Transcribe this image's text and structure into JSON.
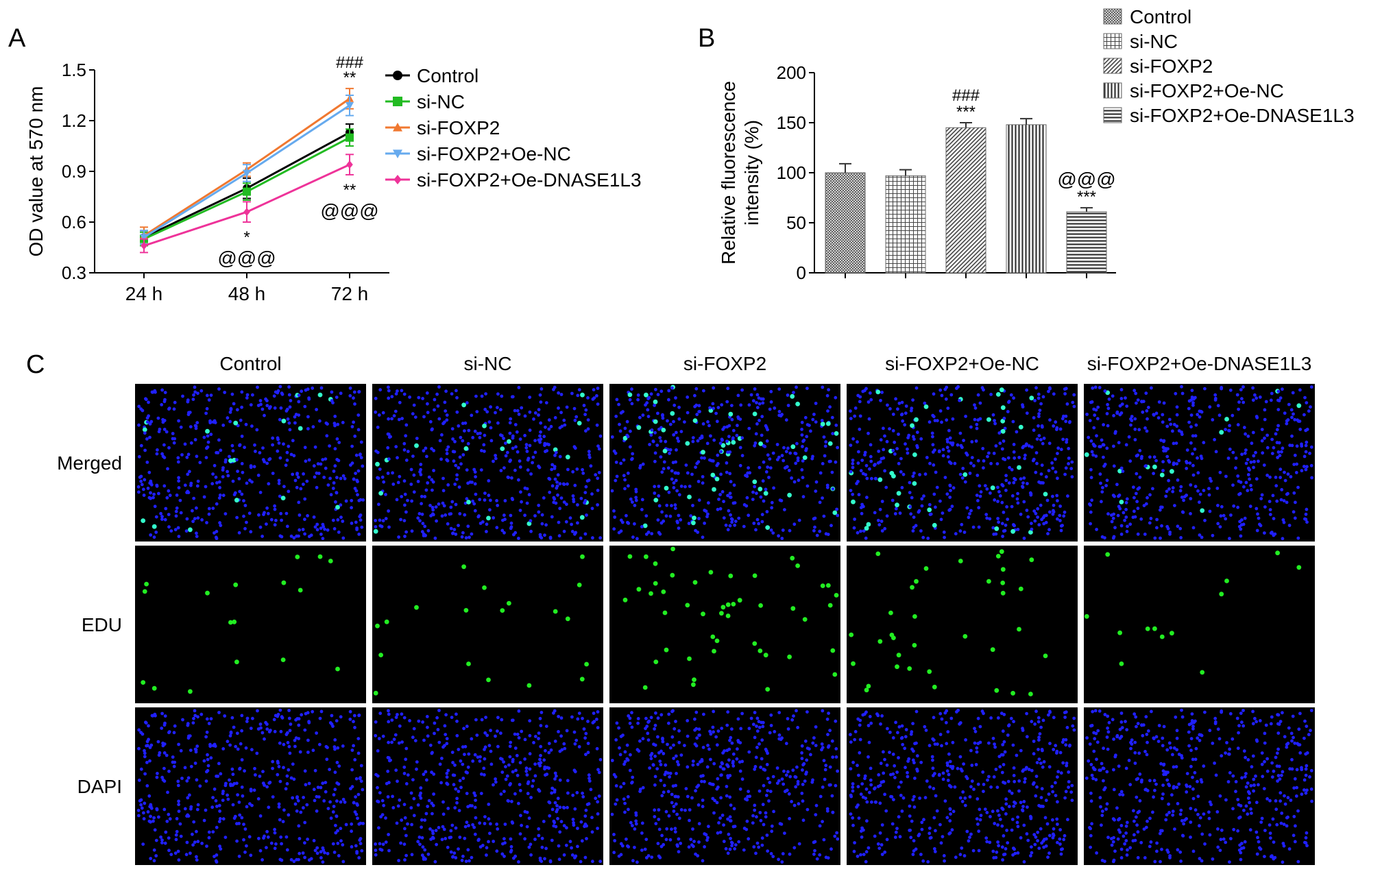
{
  "panels": {
    "a": {
      "letter": "A"
    },
    "b": {
      "letter": "B"
    },
    "c": {
      "letter": "C",
      "columns": [
        "Control",
        "si-NC",
        "si-FOXP2",
        "si-FOXP2+Oe-NC",
        "si-FOXP2+Oe-DNASE1L3"
      ],
      "rows": [
        "Merged",
        "EDU",
        "DAPI"
      ]
    }
  },
  "chart_data": [
    {
      "type": "line",
      "panel": "A",
      "ylabel": "OD value at 570 nm",
      "xlabel": "",
      "categories": [
        "24 h",
        "48 h",
        "72 h"
      ],
      "ylim": [
        0.3,
        1.5
      ],
      "yticks": [
        "0.3",
        "0.6",
        "0.9",
        "1.2",
        "1.5"
      ],
      "legend_position": "right",
      "series": [
        {
          "name": "Control",
          "values": [
            0.51,
            0.8,
            1.13
          ],
          "errors": [
            0.04,
            0.06,
            0.05
          ],
          "color": "#000000",
          "marker": "circle"
        },
        {
          "name": "si-NC",
          "values": [
            0.5,
            0.78,
            1.1
          ],
          "errors": [
            0.04,
            0.05,
            0.05
          ],
          "color": "#22bb22",
          "marker": "square"
        },
        {
          "name": "si-FOXP2",
          "values": [
            0.52,
            0.91,
            1.33
          ],
          "errors": [
            0.05,
            0.04,
            0.06
          ],
          "color": "#f07830",
          "marker": "triangle-up"
        },
        {
          "name": "si-FOXP2+Oe-NC",
          "values": [
            0.51,
            0.89,
            1.29
          ],
          "errors": [
            0.04,
            0.05,
            0.06
          ],
          "color": "#66aaee",
          "marker": "triangle-down"
        },
        {
          "name": "si-FOXP2+Oe-DNASE1L3",
          "values": [
            0.46,
            0.66,
            0.94
          ],
          "errors": [
            0.04,
            0.06,
            0.06
          ],
          "color": "#ee3399",
          "marker": "diamond"
        }
      ],
      "annotations": [
        {
          "text": "###",
          "category": "72 h",
          "placement": "above-top-1"
        },
        {
          "text": "**",
          "category": "72 h",
          "placement": "above-top-2"
        },
        {
          "text": "**",
          "category": "72 h",
          "placement": "below-low-1"
        },
        {
          "text": "@@@",
          "category": "72 h",
          "placement": "below-low-2"
        },
        {
          "text": "*",
          "category": "48 h",
          "placement": "below-low-1"
        },
        {
          "text": "@@@",
          "category": "48 h",
          "placement": "below-low-2"
        }
      ]
    },
    {
      "type": "bar",
      "panel": "B",
      "ylabel": "Relative fluorescence intensity (%)",
      "xlabel": "",
      "categories": [
        "Control",
        "si-NC",
        "si-FOXP2",
        "si-FOXP2+Oe-NC",
        "si-FOXP2+Oe-DNASE1L3"
      ],
      "values": [
        100,
        97,
        145,
        148,
        61
      ],
      "errors": [
        9,
        6,
        5,
        6,
        4
      ],
      "ylim": [
        0,
        200
      ],
      "yticks": [
        "0",
        "50",
        "100",
        "150",
        "200"
      ],
      "legend_position": "top-right",
      "legend": [
        {
          "name": "Control",
          "pattern": "crosshatch-fine"
        },
        {
          "name": "si-NC",
          "pattern": "grid"
        },
        {
          "name": "si-FOXP2",
          "pattern": "diagonal"
        },
        {
          "name": "si-FOXP2+Oe-NC",
          "pattern": "vertical"
        },
        {
          "name": "si-FOXP2+Oe-DNASE1L3",
          "pattern": "horizontal"
        }
      ],
      "annotations": [
        {
          "bar": 2,
          "lines": [
            "###",
            "***"
          ]
        },
        {
          "bar": 4,
          "lines": [
            "@@@",
            "***"
          ]
        }
      ]
    }
  ],
  "micrographs": [
    {
      "row": "Merged",
      "column": "Control",
      "density": 0.18
    },
    {
      "row": "Merged",
      "column": "si-NC",
      "density": 0.16
    },
    {
      "row": "Merged",
      "column": "si-FOXP2",
      "density": 0.32
    },
    {
      "row": "Merged",
      "column": "si-FOXP2+Oe-NC",
      "density": 0.3
    },
    {
      "row": "Merged",
      "column": "si-FOXP2+Oe-DNASE1L3",
      "density": 0.08
    },
    {
      "row": "EDU",
      "column": "Control",
      "density": 0.18
    },
    {
      "row": "EDU",
      "column": "si-NC",
      "density": 0.16
    },
    {
      "row": "EDU",
      "column": "si-FOXP2",
      "density": 0.32
    },
    {
      "row": "EDU",
      "column": "si-FOXP2+Oe-NC",
      "density": 0.3
    },
    {
      "row": "EDU",
      "column": "si-FOXP2+Oe-DNASE1L3",
      "density": 0.08
    },
    {
      "row": "DAPI",
      "column": "Control",
      "density": 1.0
    },
    {
      "row": "DAPI",
      "column": "si-NC",
      "density": 1.0
    },
    {
      "row": "DAPI",
      "column": "si-FOXP2",
      "density": 1.0
    },
    {
      "row": "DAPI",
      "column": "si-FOXP2+Oe-NC",
      "density": 1.0
    },
    {
      "row": "DAPI",
      "column": "si-FOXP2+Oe-DNASE1L3",
      "density": 1.0
    }
  ],
  "colors": {
    "dapi": "#2020ff",
    "edu": "#22ee22",
    "merged_edu": "#33ffcc",
    "panel_bg": "#000000",
    "bar_fill": "#888888"
  }
}
